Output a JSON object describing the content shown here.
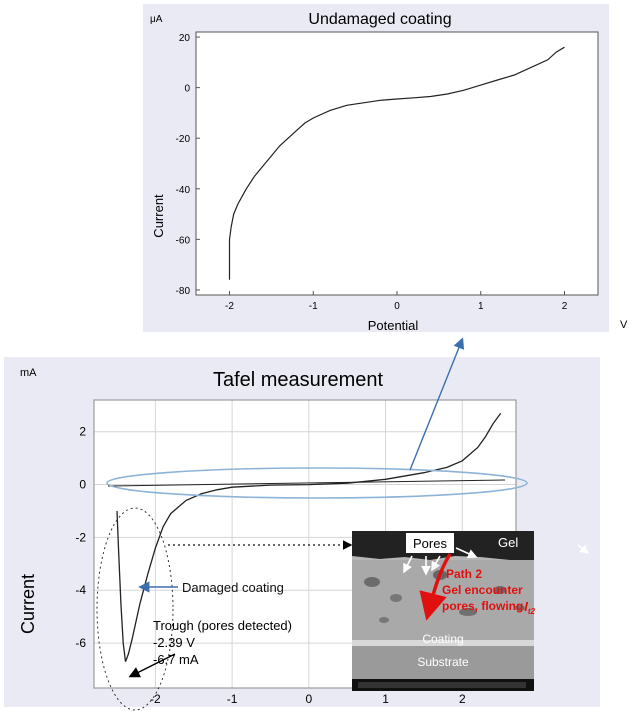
{
  "top_chart": {
    "title": "Undamaged coating",
    "unit_y": "μA",
    "unit_x": "V",
    "xlabel": "Potential",
    "ylabel": "Current"
  },
  "bottom_chart": {
    "title": "Tafel measurement",
    "unit_y": "mA",
    "ylabel": "Current"
  },
  "annotations": {
    "damaged": "Damaged coating",
    "trough_line1": "Trough (pores detected)",
    "trough_line2": "-2.39 V",
    "trough_line3": "-6.7 mA"
  },
  "inset": {
    "gel": "Gel",
    "pores": "Pores",
    "path_line1": "Path 2",
    "path_line2": "Gel encounter",
    "path_line3": "pores, flowing",
    "path_symbol": "I",
    "path_sub": "t2",
    "coating": "Coating",
    "substrate": "Substrate"
  },
  "chart_data": [
    {
      "type": "line",
      "title": "Undamaged coating",
      "xlabel": "Potential",
      "ylabel": "Current",
      "x_unit": "V",
      "y_unit": "μA",
      "xlim": [
        -2.4,
        2.4
      ],
      "ylim": [
        -82,
        22
      ],
      "x_ticks": [
        -2,
        -1,
        0,
        1,
        2
      ],
      "y_ticks": [
        20,
        0,
        -20,
        -40,
        -60,
        -80
      ],
      "grid": false,
      "series": [
        {
          "x": [
            -2.0,
            -2.0,
            -1.98,
            -1.95,
            -1.9,
            -1.85,
            -1.8,
            -1.7,
            -1.6,
            -1.5,
            -1.4,
            -1.3,
            -1.2,
            -1.1,
            -1.0,
            -0.8,
            -0.6,
            -0.4,
            -0.2,
            0.0,
            0.2,
            0.4,
            0.6,
            0.8,
            1.0,
            1.2,
            1.4,
            1.6,
            1.8,
            1.9,
            2.0
          ],
          "y": [
            -76,
            -60,
            -55,
            -50,
            -46,
            -43,
            -40,
            -35,
            -31,
            -27,
            -23,
            -20,
            -17,
            -14,
            -12,
            -9,
            -7,
            -6,
            -5,
            -4.5,
            -4,
            -3.5,
            -2.5,
            -1,
            1,
            3,
            5,
            8,
            11,
            14,
            16
          ]
        }
      ]
    },
    {
      "type": "line",
      "title": "Tafel measurement",
      "ylabel": "Current",
      "y_unit": "mA",
      "xlim": [
        -2.8,
        2.7
      ],
      "ylim": [
        -7.7,
        3.2
      ],
      "x_ticks": [
        -2,
        -1,
        0,
        1,
        2
      ],
      "y_ticks": [
        2,
        0,
        -2,
        -4,
        -6
      ],
      "grid": true,
      "series": [
        {
          "x": [
            -2.5,
            -2.48,
            -2.45,
            -2.42,
            -2.39,
            -2.35,
            -2.3,
            -2.2,
            -2.1,
            -2.0,
            -1.9,
            -1.8,
            -1.6,
            -1.4,
            -1.2,
            -1.0,
            -0.5,
            0.0,
            0.5,
            1.0,
            1.5,
            1.8,
            2.0,
            2.2,
            2.3,
            2.4,
            2.5
          ],
          "y": [
            -1.0,
            -2.5,
            -4.5,
            -6.0,
            -6.7,
            -6.4,
            -5.8,
            -4.5,
            -3.4,
            -2.4,
            -1.6,
            -1.1,
            -0.6,
            -0.35,
            -0.2,
            -0.1,
            -0.02,
            0.0,
            0.05,
            0.2,
            0.45,
            0.65,
            0.9,
            1.4,
            1.8,
            2.3,
            2.7
          ]
        }
      ]
    }
  ]
}
